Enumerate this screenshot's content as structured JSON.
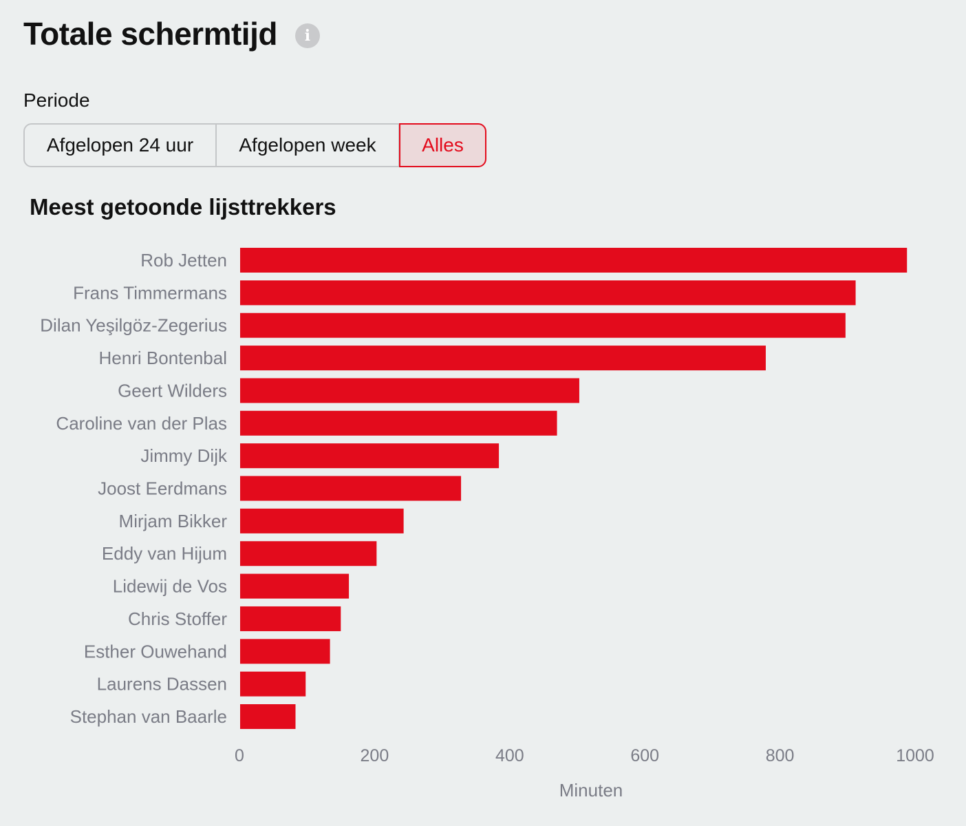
{
  "header": {
    "title": "Totale schermtijd",
    "info_icon": "info-icon"
  },
  "period": {
    "label": "Periode",
    "options": [
      "Afgelopen 24 uur",
      "Afgelopen week",
      "Alles"
    ],
    "selected": "Alles"
  },
  "colors": {
    "accent": "#e30b1c",
    "background": "#ecefef",
    "muted_text": "#7a7c86"
  },
  "chart_data": {
    "type": "bar",
    "orientation": "horizontal",
    "title": "Meest getoonde lijsttrekkers",
    "xlabel": "Minuten",
    "ylabel": "",
    "xlim": [
      0,
      1000
    ],
    "ticks": [
      0,
      200,
      400,
      600,
      800,
      1000
    ],
    "grid": false,
    "categories": [
      "Rob Jetten",
      "Frans Timmermans",
      "Dilan Yeşilgöz-Zegerius",
      "Henri Bontenbal",
      "Geert Wilders",
      "Caroline van der Plas",
      "Jimmy Dijk",
      "Joost Eerdmans",
      "Mirjam Bikker",
      "Eddy van Hijum",
      "Lidewij de Vos",
      "Chris Stoffer",
      "Esther Ouwehand",
      "Laurens Dassen",
      "Stephan van Baarle"
    ],
    "values": [
      988,
      912,
      897,
      779,
      503,
      470,
      384,
      328,
      243,
      203,
      162,
      150,
      134,
      98,
      83
    ]
  }
}
